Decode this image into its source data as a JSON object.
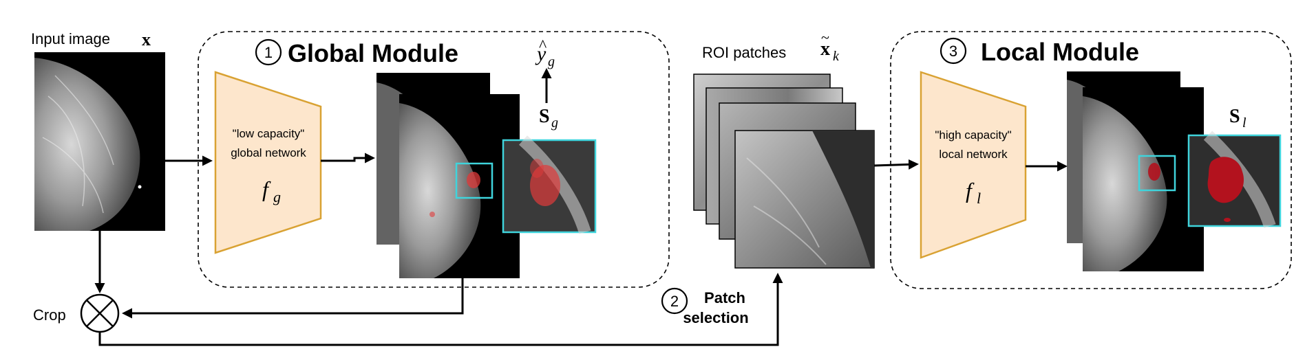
{
  "input": {
    "label": "Input  image",
    "symbol": "x"
  },
  "crop": {
    "label": "Crop"
  },
  "global_module": {
    "number": "1",
    "title": "Global Module",
    "network_line1": "\"low capacity\"",
    "network_line2": "global network",
    "function_base": "f",
    "function_sub": "g",
    "output_base": "y",
    "output_sub": "g",
    "saliency_base": "S",
    "saliency_sub": "g"
  },
  "roi": {
    "label": "ROI patches",
    "symbol_base": "x",
    "symbol_sub": "k"
  },
  "patch_selection": {
    "number": "2",
    "line1": "Patch",
    "line2": "selection"
  },
  "local_module": {
    "number": "3",
    "title": "Local Module",
    "network_line1": "\"high capacity\"",
    "network_line2": "local network",
    "function_base": "f",
    "function_sub": "l",
    "saliency_base": "S",
    "saliency_sub": "l"
  },
  "colors": {
    "network_fill": "#fde6cc",
    "network_stroke": "#d9a233",
    "highlight": "#3fd4dc",
    "lesion_global": "#e03a3a",
    "lesion_local": "#b3121e"
  }
}
